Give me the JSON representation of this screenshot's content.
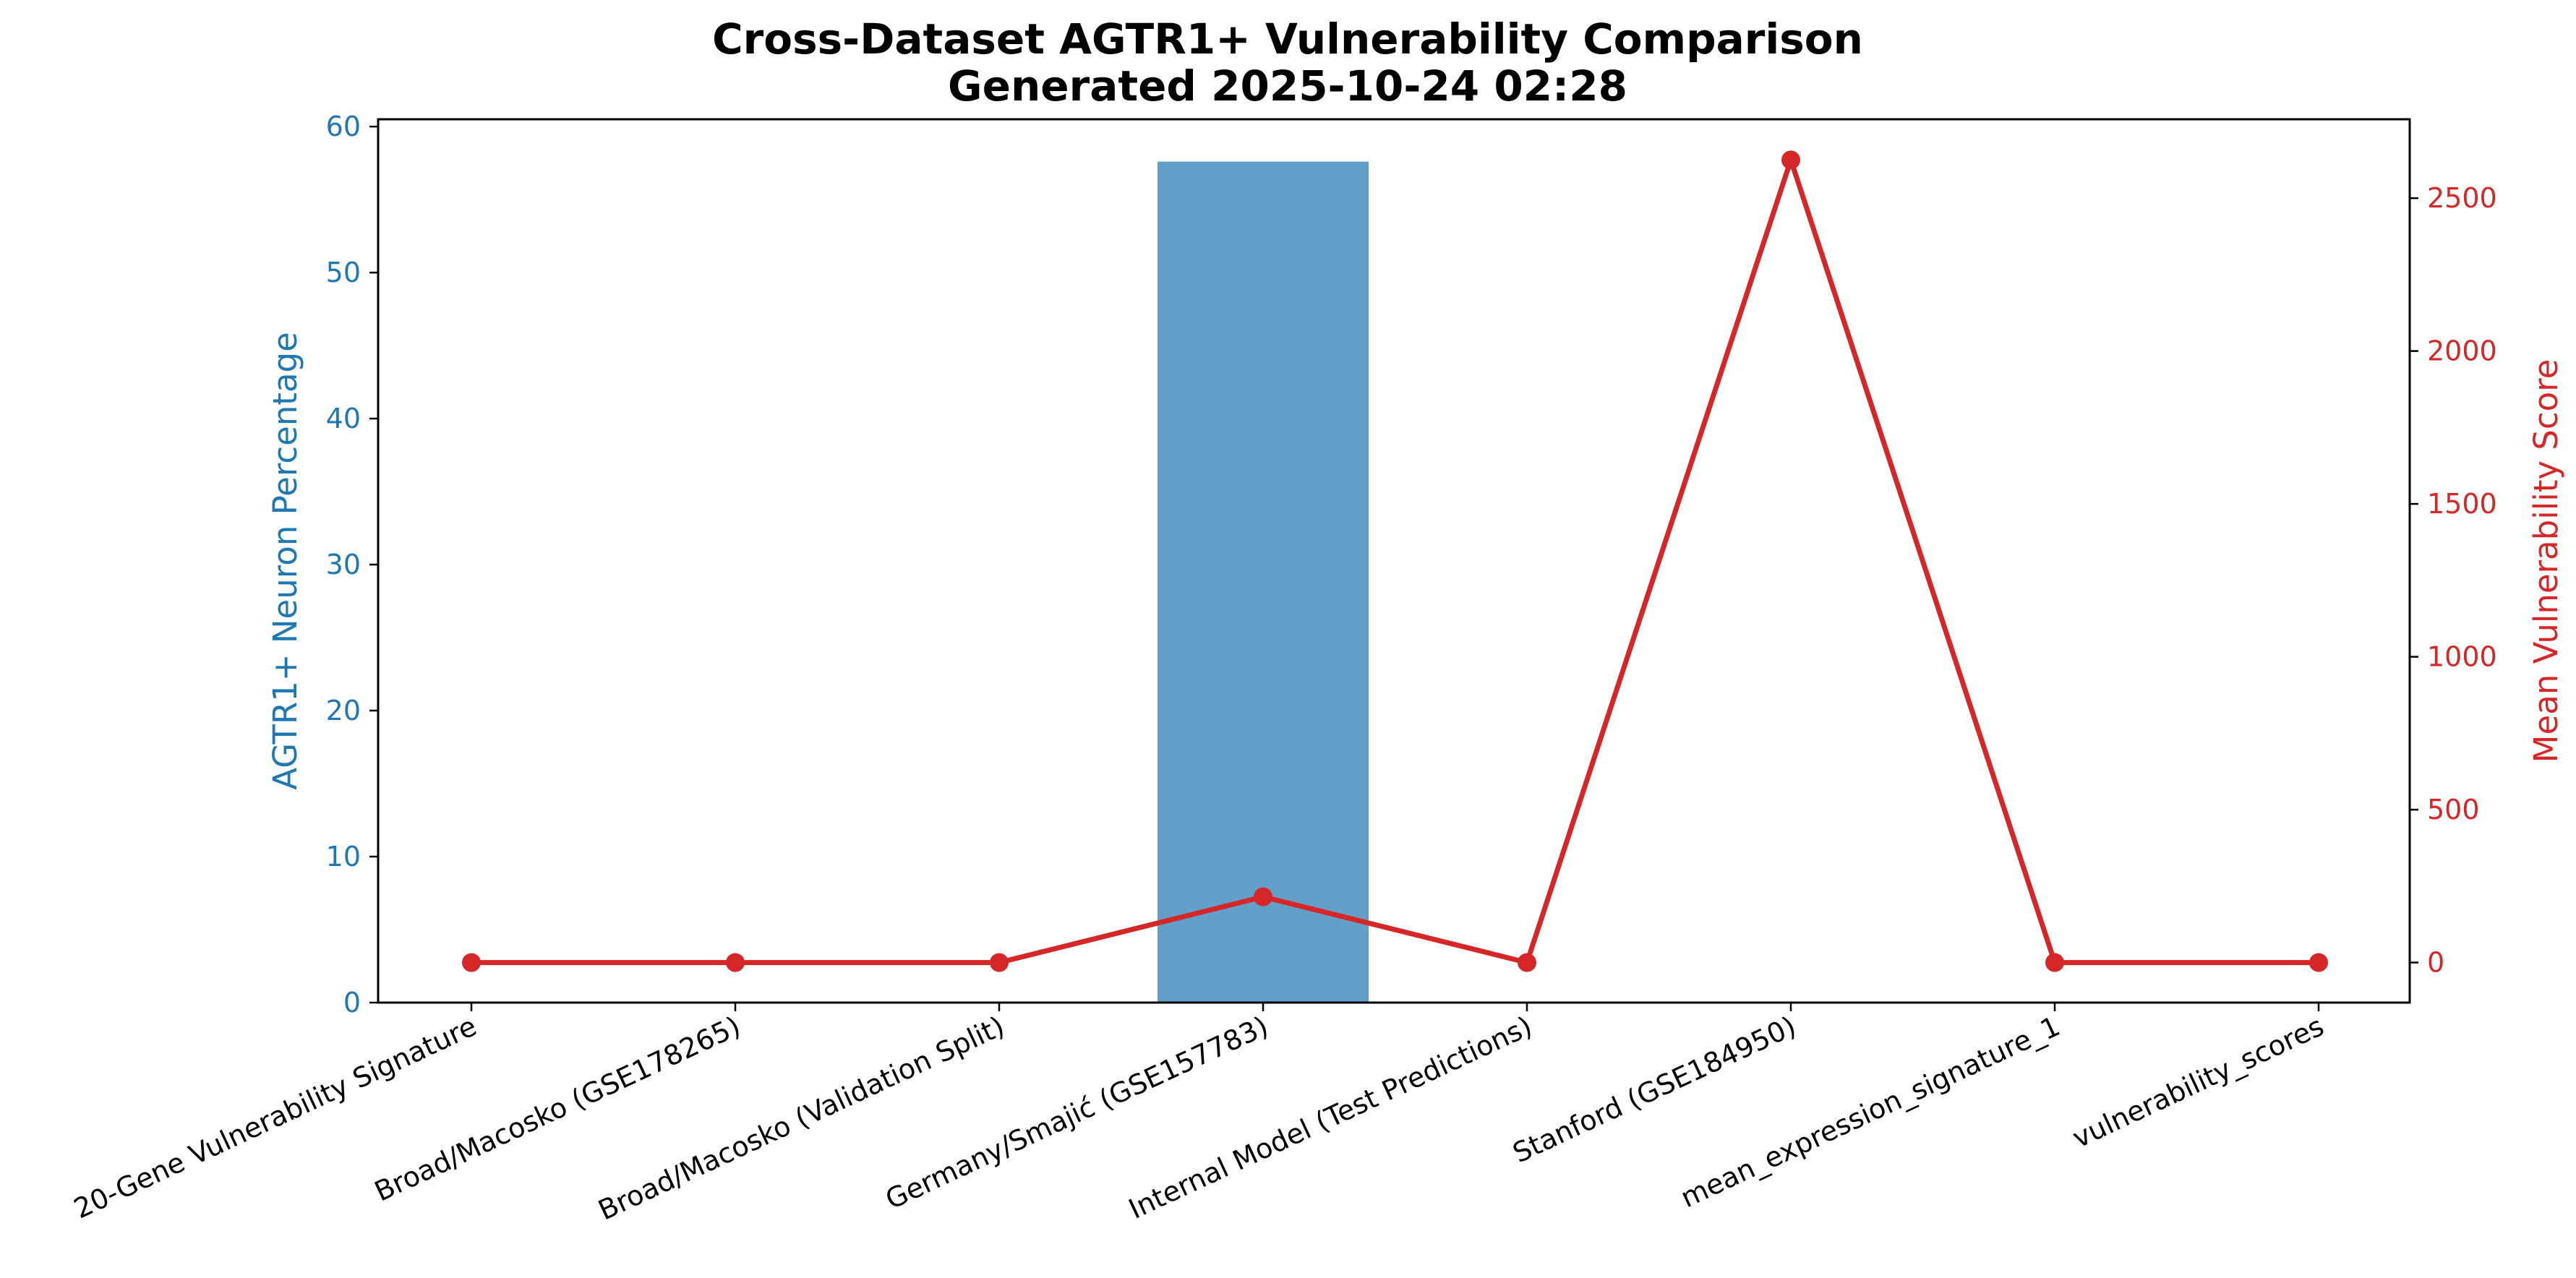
{
  "chart_data": {
    "type": "bar",
    "title_lines": [
      "Cross-Dataset AGTR1+ Vulnerability Comparison",
      "Generated 2025-10-24 02:28"
    ],
    "xlabel": "",
    "categories": [
      "20-Gene Vulnerability Signature",
      "Broad/Macosko (GSE178265)",
      "Broad/Macosko (Validation Split)",
      "Germany/Smajić (GSE157783)",
      "Internal Model (Test Predictions)",
      "Stanford (GSE184950)",
      "mean_expression_signature_1",
      "vulnerability_scores"
    ],
    "left_axis": {
      "label": "AGTR1+ Neuron Percentage",
      "ylim": [
        0,
        60.5
      ],
      "ticks": [
        0,
        10,
        20,
        30,
        40,
        50,
        60
      ],
      "color": "#1f77b4"
    },
    "right_axis": {
      "label": "Mean Vulnerability Score",
      "ylim": [
        -131,
        2758
      ],
      "ticks": [
        0,
        500,
        1000,
        1500,
        2000,
        2500
      ],
      "color": "#d62728"
    },
    "series": [
      {
        "kind": "bar",
        "axis": "left",
        "color": "#1f77b4",
        "opacity": 0.7,
        "values": [
          0,
          0,
          0,
          57.6,
          0,
          0,
          0,
          0
        ]
      },
      {
        "kind": "line",
        "axis": "right",
        "color": "#d62728",
        "marker": "circle",
        "values": [
          0,
          0,
          0,
          215,
          0,
          2625,
          0,
          0
        ]
      }
    ],
    "grid": false,
    "legend": "none"
  }
}
